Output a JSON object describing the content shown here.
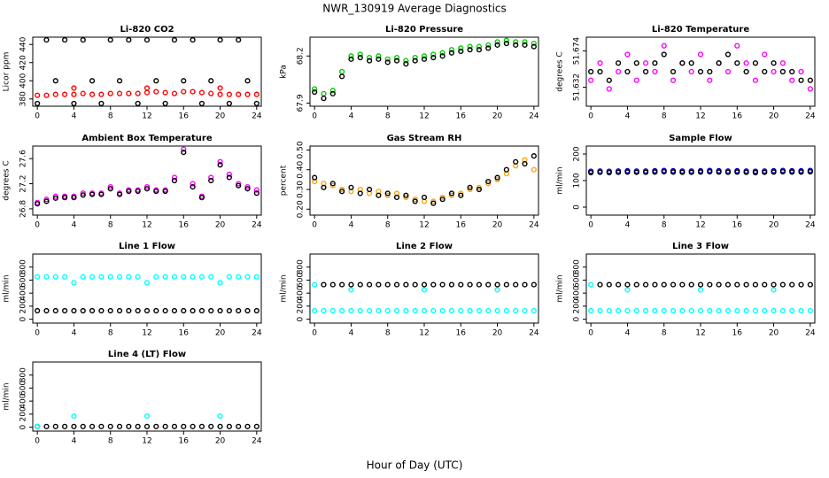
{
  "title": "NWR_130919  Average Diagnostics",
  "xlabel": "Hour of Day (UTC)",
  "chart_data": [
    {
      "type": "scatter",
      "title": "Li-820 CO2",
      "ylabel": "Licor ppm",
      "xlim": [
        -0.5,
        24.5
      ],
      "xticks": [
        0,
        4,
        8,
        12,
        16,
        20,
        24
      ],
      "ylim": [
        372,
        448
      ],
      "yticks": [
        380,
        400,
        420,
        440
      ],
      "x": [
        0,
        1,
        2,
        3,
        4,
        5,
        6,
        7,
        8,
        9,
        10,
        11,
        12,
        13,
        14,
        15,
        16,
        17,
        18,
        19,
        20,
        21,
        22,
        23,
        24
      ],
      "series": [
        {
          "color": "#ff0000",
          "values": [
            384,
            384,
            385,
            385,
            385,
            386,
            385,
            385,
            386,
            386,
            386,
            386,
            387,
            388,
            387,
            386,
            388,
            388,
            387,
            386,
            385,
            385,
            385,
            385,
            385
          ]
        },
        {
          "color": "#ff0000",
          "values": [
            null,
            null,
            null,
            null,
            392,
            null,
            null,
            null,
            null,
            null,
            null,
            null,
            392,
            null,
            null,
            null,
            null,
            null,
            null,
            null,
            392,
            null,
            null,
            null,
            null
          ]
        },
        {
          "color": "#000000",
          "values": [
            375,
            445,
            400,
            445,
            375,
            445,
            400,
            375,
            445,
            400,
            445,
            375,
            445,
            400,
            375,
            445,
            400,
            445,
            375,
            400,
            445,
            375,
            445,
            400,
            375
          ]
        }
      ]
    },
    {
      "type": "scatter",
      "title": "Li-820 Pressure",
      "ylabel": "kPa",
      "xlim": [
        -0.5,
        24.5
      ],
      "xticks": [
        0,
        4,
        8,
        12,
        16,
        20,
        24
      ],
      "ylim": [
        67.88,
        68.32
      ],
      "yticks": [
        67.9,
        68.2
      ],
      "x": [
        0,
        1,
        2,
        3,
        4,
        5,
        6,
        7,
        8,
        9,
        10,
        11,
        12,
        13,
        14,
        15,
        16,
        17,
        18,
        19,
        20,
        21,
        22,
        23,
        24
      ],
      "series": [
        {
          "color": "#00cc00",
          "values": [
            67.99,
            67.96,
            67.98,
            68.1,
            68.2,
            68.21,
            68.19,
            68.2,
            68.18,
            68.19,
            68.17,
            68.19,
            68.2,
            68.21,
            68.22,
            68.24,
            68.25,
            68.26,
            68.26,
            68.27,
            68.29,
            68.3,
            68.29,
            68.29,
            68.28
          ]
        },
        {
          "color": "#000000",
          "values": [
            67.97,
            67.93,
            67.96,
            68.07,
            68.18,
            68.19,
            68.17,
            68.18,
            68.16,
            68.17,
            68.15,
            68.17,
            68.18,
            68.19,
            68.2,
            68.22,
            68.23,
            68.24,
            68.24,
            68.25,
            68.27,
            68.28,
            68.27,
            68.27,
            68.26
          ]
        }
      ]
    },
    {
      "type": "scatter",
      "title": "Li-820 Temperature",
      "ylabel": "degrees C",
      "xlim": [
        -0.5,
        24.5
      ],
      "xticks": [
        0,
        4,
        8,
        12,
        16,
        20,
        24
      ],
      "ylim": [
        51.61,
        51.69
      ],
      "yticks": [
        51.632,
        51.674
      ],
      "x": [
        0,
        1,
        2,
        3,
        4,
        5,
        6,
        7,
        8,
        9,
        10,
        11,
        12,
        13,
        14,
        15,
        16,
        17,
        18,
        19,
        20,
        21,
        22,
        23,
        24
      ],
      "series": [
        {
          "color": "#ff00ff",
          "values": [
            51.64,
            51.66,
            51.63,
            51.65,
            51.67,
            51.64,
            51.66,
            51.65,
            51.68,
            51.64,
            51.66,
            51.65,
            51.67,
            51.64,
            51.66,
            51.65,
            51.68,
            51.66,
            51.64,
            51.67,
            51.65,
            51.66,
            51.64,
            51.65,
            51.63
          ]
        },
        {
          "color": "#000000",
          "values": [
            51.65,
            51.65,
            51.64,
            51.66,
            51.65,
            51.66,
            51.65,
            51.66,
            51.67,
            51.65,
            51.66,
            51.66,
            51.65,
            51.65,
            51.66,
            51.67,
            51.66,
            51.65,
            51.66,
            51.65,
            51.66,
            51.65,
            51.65,
            51.64,
            51.64
          ]
        }
      ]
    },
    {
      "type": "scatter",
      "title": "Ambient Box Temperature",
      "ylabel": "degrees C",
      "xlim": [
        -0.5,
        24.5
      ],
      "xticks": [
        0,
        4,
        8,
        12,
        16,
        20,
        24
      ],
      "ylim": [
        26.7,
        27.8
      ],
      "yticks": [
        26.8,
        27.2,
        27.6
      ],
      "x": [
        0,
        1,
        2,
        3,
        4,
        5,
        6,
        7,
        8,
        9,
        10,
        11,
        12,
        13,
        14,
        15,
        16,
        17,
        18,
        19,
        20,
        21,
        22,
        23,
        24
      ],
      "series": [
        {
          "color": "#ff00ff",
          "values": [
            26.9,
            26.95,
            27.0,
            27.0,
            27.0,
            27.05,
            27.05,
            27.05,
            27.15,
            27.05,
            27.1,
            27.1,
            27.15,
            27.1,
            27.1,
            27.3,
            27.75,
            27.2,
            27.0,
            27.3,
            27.55,
            27.35,
            27.2,
            27.15,
            27.1
          ]
        },
        {
          "color": "#000000",
          "values": [
            26.88,
            26.92,
            26.97,
            26.98,
            26.98,
            27.02,
            27.03,
            27.03,
            27.12,
            27.03,
            27.08,
            27.08,
            27.12,
            27.08,
            27.08,
            27.25,
            27.7,
            27.15,
            26.98,
            27.25,
            27.5,
            27.3,
            27.17,
            27.12,
            27.05
          ]
        }
      ]
    },
    {
      "type": "scatter",
      "title": "Gas Stream RH",
      "ylabel": "percent",
      "xlim": [
        -0.5,
        24.5
      ],
      "xticks": [
        0,
        4,
        8,
        12,
        16,
        20,
        24
      ],
      "ylim": [
        0.17,
        0.52
      ],
      "yticks": [
        {
          "value": 0.2,
          "label": "0.20"
        },
        {
          "value": 0.3,
          "label": "0.30"
        },
        {
          "value": 0.4,
          "label": "0.40"
        },
        {
          "value": 0.5,
          "label": "0.50"
        }
      ],
      "x": [
        0,
        1,
        2,
        3,
        4,
        5,
        6,
        7,
        8,
        9,
        10,
        11,
        12,
        13,
        14,
        15,
        16,
        17,
        18,
        19,
        20,
        21,
        22,
        23,
        24
      ],
      "series": [
        {
          "color": "#ffa500",
          "values": [
            0.34,
            0.33,
            0.32,
            0.3,
            0.29,
            0.3,
            0.28,
            0.29,
            0.27,
            0.28,
            0.26,
            0.25,
            0.24,
            0.24,
            0.26,
            0.27,
            0.28,
            0.3,
            0.31,
            0.33,
            0.35,
            0.38,
            0.42,
            0.45,
            0.4
          ]
        },
        {
          "color": "#000000",
          "values": [
            0.36,
            0.31,
            0.33,
            0.29,
            0.31,
            0.28,
            0.3,
            0.27,
            0.28,
            0.26,
            0.27,
            0.24,
            0.26,
            0.23,
            0.25,
            0.28,
            0.27,
            0.31,
            0.3,
            0.34,
            0.36,
            0.4,
            0.44,
            0.43,
            0.47
          ]
        }
      ]
    },
    {
      "type": "scatter",
      "title": "Sample Flow",
      "ylabel": "ml/min",
      "xlim": [
        -0.5,
        24.5
      ],
      "xticks": [
        0,
        4,
        8,
        12,
        16,
        20,
        24
      ],
      "ylim": [
        -30,
        230
      ],
      "yticks": [
        0,
        100,
        200
      ],
      "x": [
        0,
        1,
        2,
        3,
        4,
        5,
        6,
        7,
        8,
        9,
        10,
        11,
        12,
        13,
        14,
        15,
        16,
        17,
        18,
        19,
        20,
        21,
        22,
        23,
        24
      ],
      "series": [
        {
          "color": "#0000cc",
          "values": [
            135,
            136,
            135,
            136,
            137,
            136,
            136,
            137,
            138,
            137,
            136,
            136,
            137,
            138,
            137,
            136,
            137,
            136,
            135,
            136,
            137,
            138,
            137,
            137,
            138
          ]
        },
        {
          "color": "#000000",
          "values": [
            130,
            131,
            130,
            131,
            132,
            131,
            131,
            132,
            133,
            132,
            131,
            131,
            132,
            133,
            132,
            131,
            132,
            131,
            130,
            131,
            132,
            133,
            132,
            132,
            133
          ]
        }
      ]
    },
    {
      "type": "scatter",
      "title": "Line 1 Flow",
      "ylabel": "ml/min",
      "xlim": [
        -0.5,
        24.5
      ],
      "xticks": [
        0,
        4,
        8,
        12,
        16,
        20,
        24
      ],
      "ylim": [
        -60,
        1000
      ],
      "yticks": [
        0,
        200,
        400,
        600,
        800
      ],
      "x": [
        0,
        1,
        2,
        3,
        4,
        5,
        6,
        7,
        8,
        9,
        10,
        11,
        12,
        13,
        14,
        15,
        16,
        17,
        18,
        19,
        20,
        21,
        22,
        23,
        24
      ],
      "series": [
        {
          "color": "#00ffff",
          "values": [
            650,
            650,
            650,
            650,
            560,
            650,
            650,
            650,
            650,
            650,
            650,
            650,
            560,
            650,
            650,
            650,
            650,
            650,
            650,
            650,
            560,
            650,
            650,
            650,
            650
          ]
        },
        {
          "color": "#000000",
          "values": [
            130,
            130,
            130,
            130,
            130,
            130,
            130,
            130,
            130,
            130,
            130,
            130,
            130,
            130,
            130,
            130,
            130,
            130,
            130,
            130,
            130,
            130,
            130,
            130,
            130
          ]
        }
      ]
    },
    {
      "type": "scatter",
      "title": "Line 2 Flow",
      "ylabel": "ml/min",
      "xlim": [
        -0.5,
        24.5
      ],
      "xticks": [
        0,
        4,
        8,
        12,
        16,
        20,
        24
      ],
      "ylim": [
        -60,
        1000
      ],
      "yticks": [
        0,
        200,
        400,
        600,
        800
      ],
      "x": [
        0,
        1,
        2,
        3,
        4,
        5,
        6,
        7,
        8,
        9,
        10,
        11,
        12,
        13,
        14,
        15,
        16,
        17,
        18,
        19,
        20,
        21,
        22,
        23,
        24
      ],
      "series": [
        {
          "color": "#00ffff",
          "values": [
            130,
            130,
            130,
            130,
            130,
            130,
            130,
            130,
            130,
            130,
            130,
            130,
            130,
            130,
            130,
            130,
            130,
            130,
            130,
            130,
            130,
            130,
            130,
            130,
            130
          ]
        },
        {
          "color": "#00ffff",
          "values": [
            530,
            null,
            null,
            null,
            450,
            null,
            null,
            null,
            null,
            null,
            null,
            null,
            450,
            null,
            null,
            null,
            null,
            null,
            null,
            null,
            450,
            null,
            null,
            null,
            null
          ]
        },
        {
          "color": "#000000",
          "values": [
            null,
            530,
            530,
            530,
            530,
            530,
            530,
            530,
            530,
            530,
            530,
            530,
            530,
            530,
            530,
            530,
            530,
            530,
            530,
            530,
            530,
            530,
            530,
            530,
            530
          ]
        }
      ]
    },
    {
      "type": "scatter",
      "title": "Line 3 Flow",
      "ylabel": "ml/min",
      "xlim": [
        -0.5,
        24.5
      ],
      "xticks": [
        0,
        4,
        8,
        12,
        16,
        20,
        24
      ],
      "ylim": [
        -60,
        1000
      ],
      "yticks": [
        0,
        200,
        400,
        600,
        800
      ],
      "x": [
        0,
        1,
        2,
        3,
        4,
        5,
        6,
        7,
        8,
        9,
        10,
        11,
        12,
        13,
        14,
        15,
        16,
        17,
        18,
        19,
        20,
        21,
        22,
        23,
        24
      ],
      "series": [
        {
          "color": "#00ffff",
          "values": [
            130,
            130,
            130,
            130,
            130,
            130,
            130,
            130,
            130,
            130,
            130,
            130,
            130,
            130,
            130,
            130,
            130,
            130,
            130,
            130,
            130,
            130,
            130,
            130,
            130
          ]
        },
        {
          "color": "#00ffff",
          "values": [
            530,
            null,
            null,
            null,
            450,
            null,
            null,
            null,
            null,
            null,
            null,
            null,
            450,
            null,
            null,
            null,
            null,
            null,
            null,
            null,
            450,
            null,
            null,
            null,
            null
          ]
        },
        {
          "color": "#000000",
          "values": [
            null,
            530,
            530,
            530,
            530,
            530,
            530,
            530,
            530,
            530,
            530,
            530,
            530,
            530,
            530,
            530,
            530,
            530,
            530,
            530,
            530,
            530,
            530,
            530,
            530
          ]
        }
      ]
    },
    {
      "type": "scatter",
      "title": "Line 4 (LT) Flow",
      "ylabel": "ml/min",
      "xlim": [
        -0.5,
        24.5
      ],
      "xticks": [
        0,
        4,
        8,
        12,
        16,
        20,
        24
      ],
      "ylim": [
        -60,
        1000
      ],
      "yticks": [
        0,
        200,
        400,
        600,
        800
      ],
      "x": [
        0,
        1,
        2,
        3,
        4,
        5,
        6,
        7,
        8,
        9,
        10,
        11,
        12,
        13,
        14,
        15,
        16,
        17,
        18,
        19,
        20,
        21,
        22,
        23,
        24
      ],
      "series": [
        {
          "color": "#000000",
          "values": [
            10,
            10,
            10,
            10,
            10,
            10,
            10,
            10,
            10,
            10,
            10,
            10,
            10,
            10,
            10,
            10,
            10,
            10,
            10,
            10,
            10,
            10,
            10,
            10,
            10
          ]
        },
        {
          "color": "#00ffff",
          "values": [
            10,
            null,
            null,
            null,
            170,
            null,
            null,
            null,
            null,
            null,
            null,
            null,
            170,
            null,
            null,
            null,
            null,
            null,
            null,
            null,
            170,
            null,
            null,
            null,
            null
          ]
        }
      ]
    }
  ]
}
